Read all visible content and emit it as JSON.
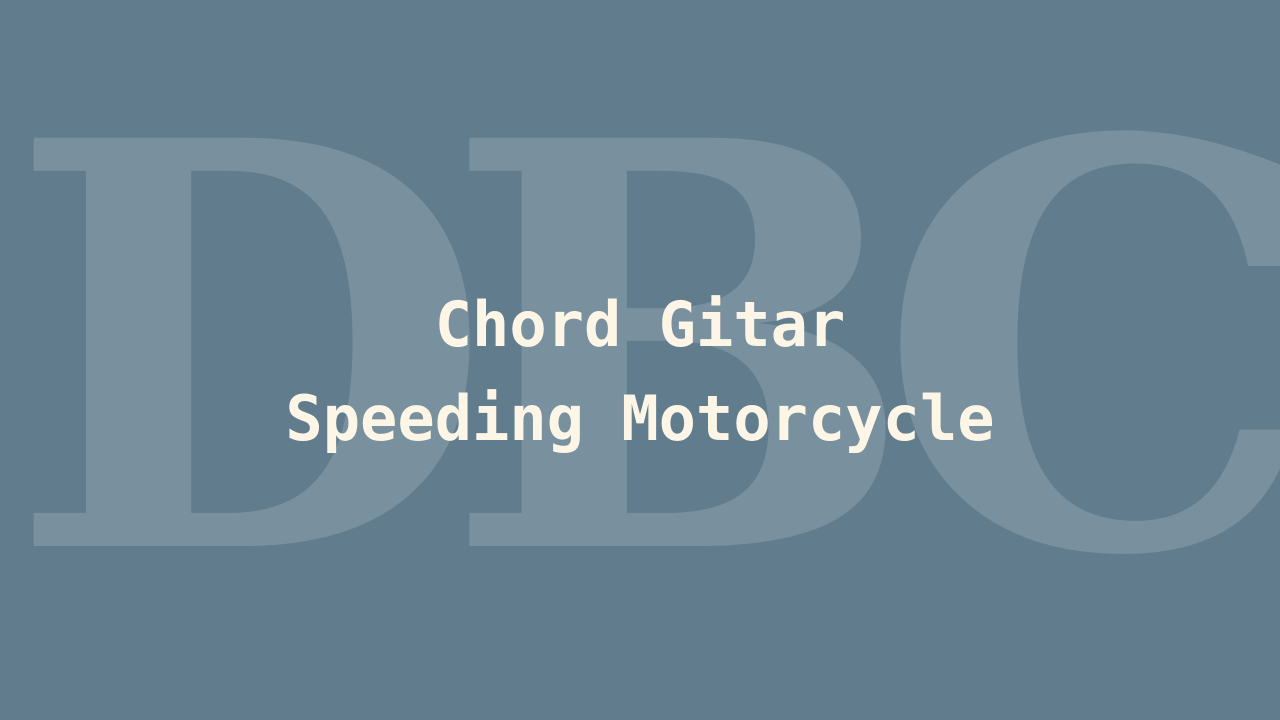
{
  "watermark": {
    "text": "DBC"
  },
  "title": {
    "line1": "Chord Gitar",
    "line2": "Speeding Motorcycle"
  },
  "colors": {
    "background": "#607c8d",
    "title_text": "#fdf5e6"
  }
}
